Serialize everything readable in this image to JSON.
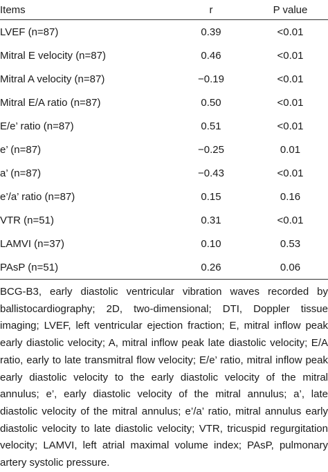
{
  "table": {
    "header": [
      "Items",
      "r",
      "P value"
    ],
    "rows": [
      [
        "LVEF (n=87)",
        "0.39",
        "<0.01"
      ],
      [
        "Mitral E velocity (n=87)",
        "0.46",
        "<0.01"
      ],
      [
        "Mitral A velocity (n=87)",
        "−0.19",
        "<0.01"
      ],
      [
        "Mitral E/A ratio (n=87)",
        "0.50",
        "<0.01"
      ],
      [
        "E/e’ ratio (n=87)",
        "0.51",
        "<0.01"
      ],
      [
        "e’ (n=87)",
        "−0.25",
        "0.01"
      ],
      [
        "a’ (n=87)",
        "−0.43",
        "<0.01"
      ],
      [
        "e’/a’ ratio (n=87)",
        "0.15",
        "0.16"
      ],
      [
        "VTR (n=51)",
        "0.31",
        "<0.01"
      ],
      [
        "LAMVI (n=37)",
        "0.10",
        "0.53"
      ],
      [
        "PAsP (n=51)",
        "0.26",
        "0.06"
      ]
    ]
  },
  "footnote": "BCG-B3, early diastolic ventricular vibration waves recorded by ballistocardiography; 2D, two-dimensional; DTI, Doppler tissue imaging; LVEF, left ventricular ejection fraction; E, mitral inflow peak early diastolic velocity; A, mitral inflow peak late diastolic velocity; E/A ratio, early to late transmitral flow velocity; E/e’ ratio, mitral inflow peak early diastolic velocity to the early diastolic velocity of the mitral annulus; e’, early diastolic velocity of the mitral annulus; a’, late diastolic velocity of the mitral annulus; e’/a’ ratio, mitral annulus early diastolic velocity to late diastolic velocity; VTR, tricuspid regurgitation velocity; LAMVI, left atrial maximal volume index; PAsP, pulmonary artery systolic pressure."
}
